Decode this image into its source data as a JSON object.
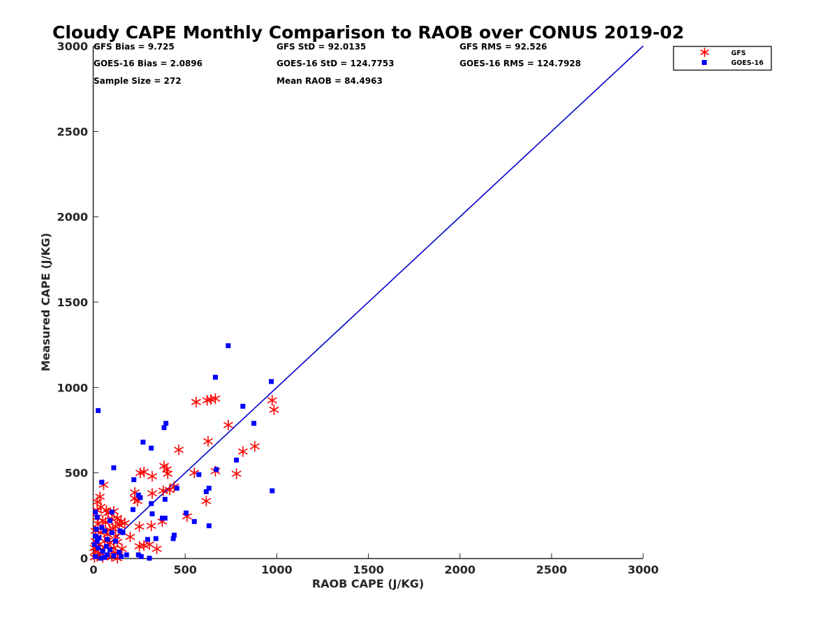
{
  "chart_data": {
    "type": "scatter",
    "title": "Cloudy CAPE Monthly Comparison to RAOB over CONUS 2019-02",
    "xlabel": "RAOB CAPE (J/KG)",
    "ylabel": "Measured CAPE (J/KG)",
    "xlim": [
      0,
      3000
    ],
    "ylim": [
      0,
      3000
    ],
    "xticks": [
      "0",
      "500",
      "1000",
      "1500",
      "2000",
      "2500",
      "3000"
    ],
    "yticks": [
      "0",
      "500",
      "1000",
      "1500",
      "2000",
      "2500",
      "3000"
    ],
    "grid": false,
    "legend_position": "top-right",
    "stats": {
      "gfs_bias": "GFS Bias = 9.725",
      "goes_bias": "GOES-16 Bias = 2.0896",
      "sample_size": "Sample Size = 272",
      "gfs_std": "GFS StD = 92.0135",
      "goes_std": "GOES-16 StD = 124.7753",
      "mean_raob": "Mean RAOB = 84.4963",
      "gfs_rms": "GFS RMS = 92.526",
      "goes_rms": "GOES-16 RMS = 124.7928"
    },
    "reference_line": {
      "x": [
        0,
        3000
      ],
      "y": [
        0,
        3000
      ],
      "color": "#0000cc"
    },
    "series": [
      {
        "name": "GFS",
        "marker": "asterisk",
        "color": "#ff0000",
        "points": [
          [
            560,
            915
          ],
          [
            620,
            925
          ],
          [
            640,
            930
          ],
          [
            665,
            935
          ],
          [
            975,
            925
          ],
          [
            985,
            870
          ],
          [
            735,
            780
          ],
          [
            625,
            685
          ],
          [
            465,
            635
          ],
          [
            880,
            655
          ],
          [
            815,
            625
          ],
          [
            385,
            540
          ],
          [
            400,
            520
          ],
          [
            275,
            505
          ],
          [
            255,
            500
          ],
          [
            320,
            480
          ],
          [
            405,
            495
          ],
          [
            550,
            500
          ],
          [
            665,
            510
          ],
          [
            780,
            495
          ],
          [
            415,
            400
          ],
          [
            440,
            420
          ],
          [
            380,
            395
          ],
          [
            320,
            380
          ],
          [
            225,
            385
          ],
          [
            225,
            350
          ],
          [
            240,
            335
          ],
          [
            615,
            335
          ],
          [
            55,
            430
          ],
          [
            35,
            360
          ],
          [
            20,
            330
          ],
          [
            40,
            300
          ],
          [
            20,
            280
          ],
          [
            70,
            280
          ],
          [
            80,
            265
          ],
          [
            110,
            275
          ],
          [
            20,
            240
          ],
          [
            50,
            220
          ],
          [
            65,
            210
          ],
          [
            100,
            230
          ],
          [
            130,
            235
          ],
          [
            150,
            215
          ],
          [
            170,
            205
          ],
          [
            140,
            195
          ],
          [
            120,
            185
          ],
          [
            105,
            175
          ],
          [
            90,
            165
          ],
          [
            25,
            200
          ],
          [
            10,
            160
          ],
          [
            40,
            150
          ],
          [
            75,
            140
          ],
          [
            120,
            130
          ],
          [
            200,
            125
          ],
          [
            510,
            245
          ],
          [
            375,
            215
          ],
          [
            315,
            190
          ],
          [
            250,
            185
          ],
          [
            60,
            100
          ],
          [
            90,
            90
          ],
          [
            130,
            95
          ],
          [
            30,
            80
          ],
          [
            60,
            65
          ],
          [
            110,
            60
          ],
          [
            155,
            55
          ],
          [
            250,
            70
          ],
          [
            275,
            75
          ],
          [
            305,
            80
          ],
          [
            345,
            55
          ],
          [
            10,
            40
          ],
          [
            40,
            30
          ],
          [
            80,
            20
          ],
          [
            120,
            30
          ],
          [
            20,
            10
          ],
          [
            50,
            5
          ],
          [
            100,
            10
          ],
          [
            5,
            5
          ],
          [
            10,
            100
          ],
          [
            130,
            0
          ],
          [
            5,
            60
          ]
        ]
      },
      {
        "name": "GOES-16",
        "marker": "square",
        "color": "#0000ff",
        "points": [
          [
            25,
            865
          ],
          [
            735,
            1245
          ],
          [
            665,
            1060
          ],
          [
            970,
            1035
          ],
          [
            815,
            890
          ],
          [
            395,
            790
          ],
          [
            875,
            790
          ],
          [
            385,
            765
          ],
          [
            270,
            680
          ],
          [
            315,
            645
          ],
          [
            780,
            575
          ],
          [
            670,
            520
          ],
          [
            110,
            530
          ],
          [
            575,
            490
          ],
          [
            45,
            445
          ],
          [
            220,
            460
          ],
          [
            455,
            410
          ],
          [
            630,
            410
          ],
          [
            615,
            390
          ],
          [
            975,
            395
          ],
          [
            245,
            370
          ],
          [
            255,
            355
          ],
          [
            390,
            345
          ],
          [
            315,
            320
          ],
          [
            215,
            285
          ],
          [
            320,
            260
          ],
          [
            505,
            265
          ],
          [
            100,
            270
          ],
          [
            375,
            235
          ],
          [
            390,
            235
          ],
          [
            550,
            215
          ],
          [
            630,
            190
          ],
          [
            45,
            180
          ],
          [
            90,
            220
          ],
          [
            10,
            270
          ],
          [
            20,
            240
          ],
          [
            15,
            170
          ],
          [
            60,
            160
          ],
          [
            100,
            150
          ],
          [
            145,
            160
          ],
          [
            160,
            150
          ],
          [
            10,
            130
          ],
          [
            30,
            120
          ],
          [
            75,
            110
          ],
          [
            120,
            100
          ],
          [
            340,
            115
          ],
          [
            295,
            110
          ],
          [
            435,
            115
          ],
          [
            440,
            135
          ],
          [
            25,
            60
          ],
          [
            50,
            40
          ],
          [
            90,
            50
          ],
          [
            140,
            35
          ],
          [
            180,
            20
          ],
          [
            245,
            20
          ],
          [
            260,
            10
          ],
          [
            305,
            0
          ],
          [
            10,
            10
          ],
          [
            60,
            5
          ],
          [
            110,
            15
          ],
          [
            5,
            80
          ],
          [
            40,
            0
          ],
          [
            75,
            20
          ],
          [
            150,
            10
          ],
          [
            20,
            100
          ],
          [
            70,
            70
          ]
        ]
      }
    ]
  }
}
